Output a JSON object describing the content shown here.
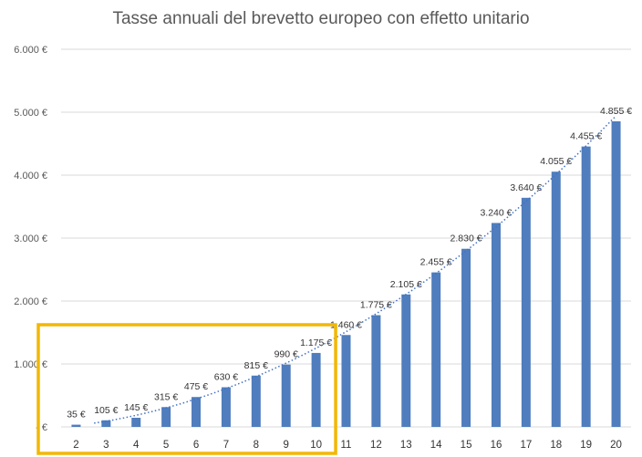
{
  "chart_data": {
    "type": "bar",
    "title": "Tasse annuali del brevetto europeo con effetto unitario",
    "categories": [
      "2",
      "3",
      "4",
      "5",
      "6",
      "7",
      "8",
      "9",
      "10",
      "11",
      "12",
      "13",
      "14",
      "15",
      "16",
      "17",
      "18",
      "19",
      "20"
    ],
    "values": [
      35,
      105,
      145,
      315,
      475,
      630,
      815,
      990,
      1175,
      1460,
      1775,
      2105,
      2455,
      2830,
      3240,
      3640,
      4055,
      4455,
      4855
    ],
    "data_labels": [
      "35 €",
      "105 €",
      "145 €",
      "315 €",
      "475 €",
      "630 €",
      "815 €",
      "990 €",
      "1.175 €",
      "1.460 €",
      "1.775 €",
      "2.105 €",
      "2.455 €",
      "2.830 €",
      "3.240 €",
      "3.640 €",
      "4.055 €",
      "4.455 €",
      "4.855 €"
    ],
    "ylim": [
      0,
      6000
    ],
    "y_ticks": [
      {
        "value": 0,
        "label": "-   €"
      },
      {
        "value": 1000,
        "label": "1.000 €"
      },
      {
        "value": 2000,
        "label": "2.000 €"
      },
      {
        "value": 3000,
        "label": "3.000 €"
      },
      {
        "value": 4000,
        "label": "4.000 €"
      },
      {
        "value": 5000,
        "label": "5.000 €"
      },
      {
        "value": 6000,
        "label": "6.000 €"
      }
    ],
    "grid": true,
    "trendline": {
      "type": "polynomial",
      "style": "dotted"
    },
    "highlight": {
      "from_category": "2",
      "to_category": "10",
      "color": "#F2B705"
    },
    "colors": {
      "bar": "#4F7DBD",
      "trendline": "#4472C4",
      "grid": "#D9D9D9"
    }
  }
}
